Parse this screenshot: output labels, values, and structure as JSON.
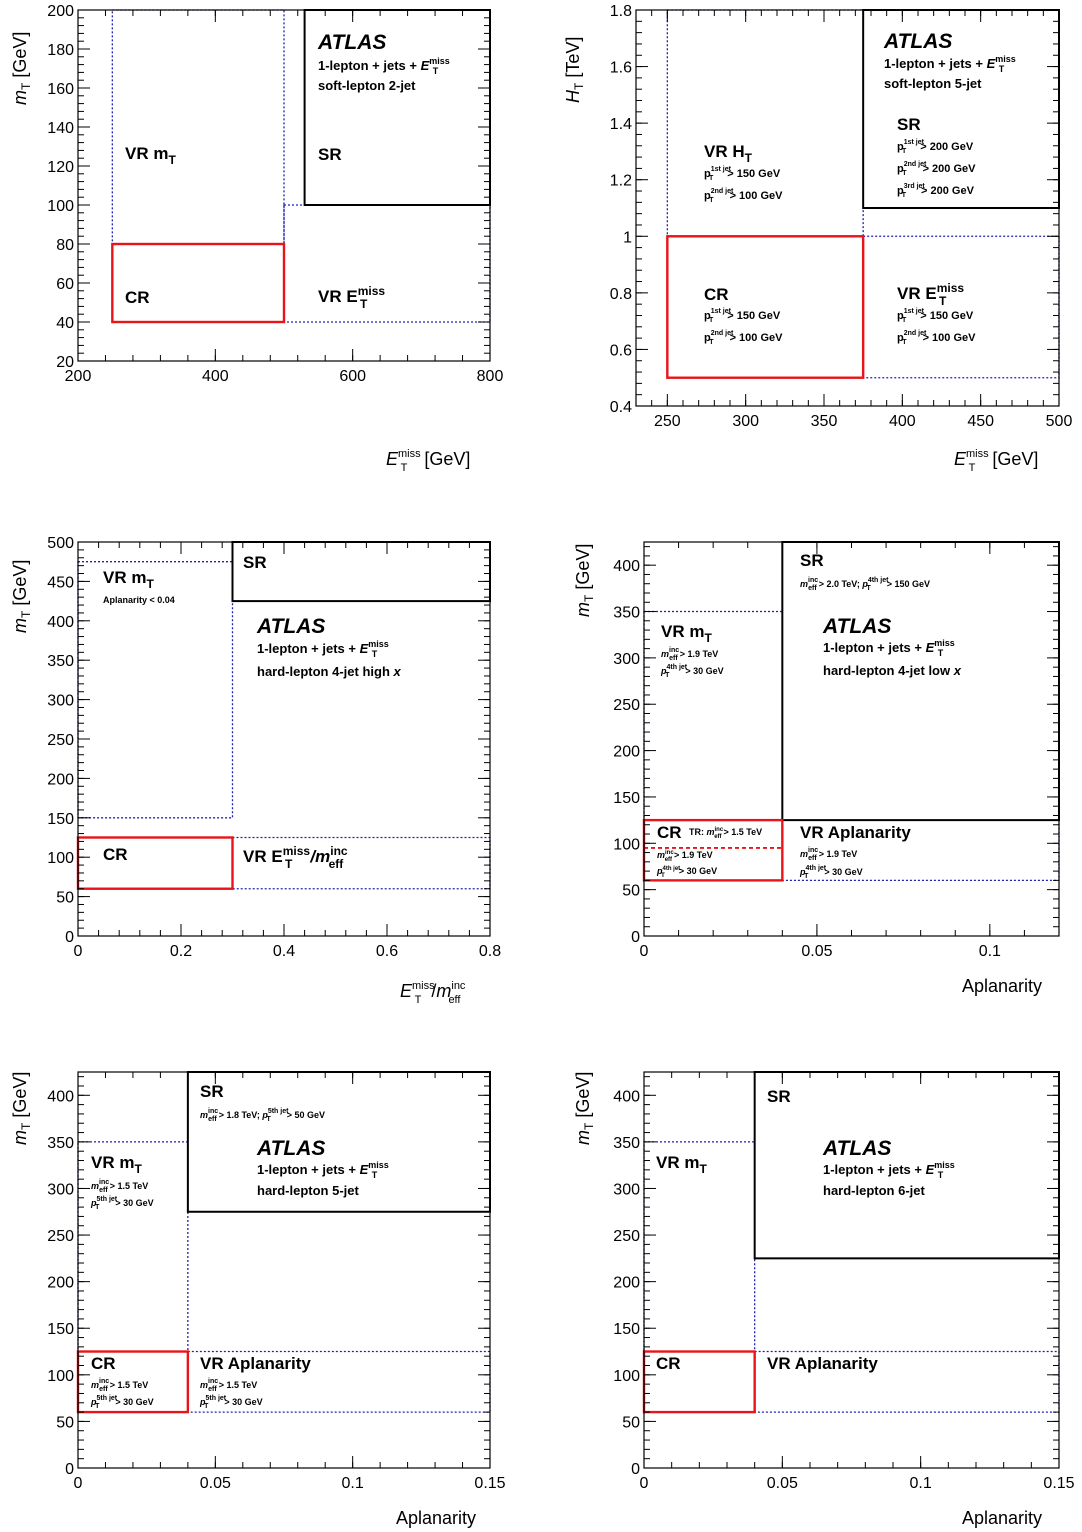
{
  "colors": {
    "cr": "#e8141a",
    "sr": "#000000",
    "vr": "#2020b0"
  },
  "chart_data": [
    {
      "type": "region-map",
      "id": "p1",
      "xlabel_main": "E",
      "xlabel_sup": "miss",
      "xlabel_sub": "T",
      "xlabel_unit": " [GeV]",
      "ylabel_main": "m",
      "ylabel_sub": "T",
      "ylabel_unit": " [GeV]",
      "xlim": [
        200,
        800
      ],
      "ylim": [
        20,
        200
      ],
      "xticks": [
        "200",
        "400",
        "600",
        "800"
      ],
      "yticks": [
        "20",
        "40",
        "60",
        "80",
        "100",
        "120",
        "140",
        "160",
        "180",
        "200"
      ],
      "atlas": "ATLAS",
      "analysis_line1": "1-lepton + jets + ",
      "analysis_met": "E",
      "analysis_met_sup": "miss",
      "analysis_met_sub": "T",
      "analysis_line2": "soft-lepton 2-jet",
      "regions": [
        {
          "kind": "vr",
          "x": [
            250,
            500
          ],
          "y": [
            80,
            200
          ]
        },
        {
          "kind": "vr",
          "x": [
            500,
            800
          ],
          "y": [
            40,
            100
          ]
        },
        {
          "kind": "sr",
          "x": [
            530,
            800
          ],
          "y": [
            100,
            200
          ]
        },
        {
          "kind": "cr",
          "x": [
            250,
            500
          ],
          "y": [
            40,
            80
          ]
        }
      ],
      "labels": {
        "vr_mt": "VR  m",
        "vr_mt_sub": "T",
        "sr": "SR",
        "cr": "CR",
        "vr_met": "VR  E",
        "vr_met_sup": "miss",
        "vr_met_sub": "T"
      }
    },
    {
      "type": "region-map",
      "id": "p2",
      "xlabel_main": "E",
      "xlabel_sup": "miss",
      "xlabel_sub": "T",
      "xlabel_unit": " [GeV]",
      "ylabel_main": "H",
      "ylabel_sub": "T",
      "ylabel_unit": " [TeV]",
      "xlim": [
        230,
        500
      ],
      "ylim": [
        0.4,
        1.8
      ],
      "xticks": [
        "250",
        "300",
        "350",
        "400",
        "450",
        "500"
      ],
      "yticks": [
        "0.4",
        "0.6",
        "0.8",
        "1",
        "1.2",
        "1.4",
        "1.6",
        "1.8"
      ],
      "atlas": "ATLAS",
      "analysis_line1": "1-lepton + jets + ",
      "analysis_met": "E",
      "analysis_met_sup": "miss",
      "analysis_met_sub": "T",
      "analysis_line2": "soft-lepton 5-jet",
      "regions": [
        {
          "kind": "vr",
          "x": [
            250,
            375
          ],
          "y": [
            1.0,
            1.8
          ]
        },
        {
          "kind": "vr",
          "x": [
            375,
            500
          ],
          "y": [
            0.5,
            1.0
          ]
        },
        {
          "kind": "sr",
          "x": [
            375,
            500
          ],
          "y": [
            1.1,
            1.8
          ]
        },
        {
          "kind": "cr",
          "x": [
            250,
            375
          ],
          "y": [
            0.5,
            1.0
          ]
        }
      ],
      "labels": {
        "vr_ht": "VR  H",
        "vr_ht_sub": "T",
        "vr_ht_l1": "> 150 GeV",
        "vr_ht_l2": "> 100 GeV",
        "sr": "SR",
        "sr_l1": "> 200 GeV",
        "sr_l2": "> 200 GeV",
        "sr_l3": "> 200 GeV",
        "cr": "CR",
        "cr_l1": "> 150 GeV",
        "cr_l2": "> 100 GeV",
        "vr_met": "VR  E",
        "vr_met_sup": "miss",
        "vr_met_sub": "T",
        "vr_met_l1": "> 150 GeV",
        "vr_met_l2": "> 100 GeV",
        "p": "p",
        "T": "T",
        "j1": "1st jet",
        "j2": "2nd jet",
        "j3": "3rd jet"
      }
    },
    {
      "type": "region-map",
      "id": "p3",
      "xlabel_main": "E",
      "xlabel_sup": "miss",
      "xlabel_sub": "T",
      "xlabel_slash": "/",
      "xlabel_m": "m",
      "xlabel_m_sup": "inc",
      "xlabel_m_sub": "eff",
      "ylabel_main": "m",
      "ylabel_sub": "T",
      "ylabel_unit": " [GeV]",
      "xlim": [
        0,
        0.8
      ],
      "ylim": [
        0,
        500
      ],
      "xticks": [
        "0",
        "0.2",
        "0.4",
        "0.6",
        "0.8"
      ],
      "yticks": [
        "0",
        "50",
        "100",
        "150",
        "200",
        "250",
        "300",
        "350",
        "400",
        "450",
        "500"
      ],
      "atlas": "ATLAS",
      "analysis_line1": "1-lepton + jets + ",
      "analysis_met": "E",
      "analysis_met_sup": "miss",
      "analysis_met_sub": "T",
      "analysis_line2": "hard-lepton 4-jet high ",
      "analysis_x": "x",
      "regions": [
        {
          "kind": "vr",
          "x": [
            0,
            0.3
          ],
          "y": [
            150,
            475
          ]
        },
        {
          "kind": "vr",
          "x": [
            0.3,
            0.8
          ],
          "y": [
            60,
            125
          ]
        },
        {
          "kind": "sr",
          "x": [
            0.3,
            0.8
          ],
          "y": [
            425,
            500
          ]
        },
        {
          "kind": "cr",
          "x": [
            0,
            0.3
          ],
          "y": [
            60,
            125
          ]
        }
      ],
      "labels": {
        "vr_mt": "VR  m",
        "vr_mt_sub": "T",
        "vr_mt_l1": "Aplanarity < 0.04",
        "sr": "SR",
        "cr": "CR",
        "vr_ratio": "VR  E",
        "vr_ratio_sup": "miss",
        "vr_ratio_sub": "T",
        "vr_ratio_slash": "/m",
        "vr_ratio_m_sup": "inc",
        "vr_ratio_m_sub": "eff"
      }
    },
    {
      "type": "region-map",
      "id": "p4",
      "xlabel": "Aplanarity",
      "ylabel_main": "m",
      "ylabel_sub": "T",
      "ylabel_unit": " [GeV]",
      "xlim": [
        0,
        0.12
      ],
      "ylim": [
        0,
        425
      ],
      "xticks": [
        "0",
        "0.05",
        "0.1"
      ],
      "yticks": [
        "0",
        "50",
        "100",
        "150",
        "200",
        "250",
        "300",
        "350",
        "400"
      ],
      "atlas": "ATLAS",
      "analysis_line1": "1-lepton + jets + ",
      "analysis_met": "E",
      "analysis_met_sup": "miss",
      "analysis_met_sub": "T",
      "analysis_line2": "hard-lepton 4-jet low ",
      "analysis_x": "x",
      "regions": [
        {
          "kind": "vr",
          "x": [
            0,
            0.04
          ],
          "y": [
            125,
            350
          ]
        },
        {
          "kind": "vr",
          "x": [
            0.04,
            0.12
          ],
          "y": [
            60,
            125
          ]
        },
        {
          "kind": "sr",
          "x": [
            0.04,
            0.12
          ],
          "y": [
            125,
            425
          ]
        },
        {
          "kind": "cr",
          "x": [
            0,
            0.04
          ],
          "y": [
            60,
            125
          ]
        },
        {
          "kind": "crsplit",
          "x": [
            0,
            0.04
          ],
          "y": [
            95,
            95
          ]
        }
      ],
      "labels": {
        "sr": "SR",
        "sr_l1": "> 2.0 TeV; ",
        "sr_l2": "> 150 GeV",
        "vr_mt": "VR  m",
        "vr_mt_sub": "T",
        "vr_mt_l1": "> 1.9 TeV",
        "vr_mt_l2": "> 30 GeV",
        "cr": "CR",
        "cr_tr": "TR: ",
        "cr_tr_l": "> 1.5 TeV",
        "cr_l1": "> 1.9 TeV",
        "cr_l2": "> 30 GeV",
        "vr_apl": "VR Aplanarity",
        "vr_apl_l1": "> 1.9 TeV",
        "vr_apl_l2": "> 30 GeV",
        "m": "m",
        "inc": "inc",
        "eff": "eff",
        "p": "p",
        "T": "T",
        "j4": "4th jet"
      }
    },
    {
      "type": "region-map",
      "id": "p5",
      "xlabel": "Aplanarity",
      "ylabel_main": "m",
      "ylabel_sub": "T",
      "ylabel_unit": " [GeV]",
      "xlim": [
        0,
        0.15
      ],
      "ylim": [
        0,
        425
      ],
      "xticks": [
        "0",
        "0.05",
        "0.1",
        "0.15"
      ],
      "yticks": [
        "0",
        "50",
        "100",
        "150",
        "200",
        "250",
        "300",
        "350",
        "400"
      ],
      "atlas": "ATLAS",
      "analysis_line1": "1-lepton + jets + ",
      "analysis_met": "E",
      "analysis_met_sup": "miss",
      "analysis_met_sub": "T",
      "analysis_line2": "hard-lepton 5-jet",
      "regions": [
        {
          "kind": "vr",
          "x": [
            0,
            0.04
          ],
          "y": [
            125,
            350
          ]
        },
        {
          "kind": "vr",
          "x": [
            0.04,
            0.15
          ],
          "y": [
            60,
            125
          ]
        },
        {
          "kind": "sr",
          "x": [
            0.04,
            0.15
          ],
          "y": [
            275,
            425
          ]
        },
        {
          "kind": "cr",
          "x": [
            0,
            0.04
          ],
          "y": [
            60,
            125
          ]
        }
      ],
      "labels": {
        "sr": "SR",
        "sr_l1": "> 1.8 TeV; ",
        "sr_l2": "> 50 GeV",
        "vr_mt": "VR  m",
        "vr_mt_sub": "T",
        "vr_mt_l1": "> 1.5 TeV",
        "vr_mt_l2": "> 30 GeV",
        "cr": "CR",
        "cr_l1": "> 1.5 TeV",
        "cr_l2": "> 30 GeV",
        "vr_apl": "VR Aplanarity",
        "vr_apl_l1": "> 1.5 TeV",
        "vr_apl_l2": "> 30 GeV",
        "m": "m",
        "inc": "inc",
        "eff": "eff",
        "p": "p",
        "T": "T",
        "j5": "5th jet"
      }
    },
    {
      "type": "region-map",
      "id": "p6",
      "xlabel": "Aplanarity",
      "ylabel_main": "m",
      "ylabel_sub": "T",
      "ylabel_unit": " [GeV]",
      "xlim": [
        0,
        0.15
      ],
      "ylim": [
        0,
        425
      ],
      "xticks": [
        "0",
        "0.05",
        "0.1",
        "0.15"
      ],
      "yticks": [
        "0",
        "50",
        "100",
        "150",
        "200",
        "250",
        "300",
        "350",
        "400"
      ],
      "atlas": "ATLAS",
      "analysis_line1": "1-lepton + jets + ",
      "analysis_met": "E",
      "analysis_met_sup": "miss",
      "analysis_met_sub": "T",
      "analysis_line2": "hard-lepton 6-jet",
      "regions": [
        {
          "kind": "vr",
          "x": [
            0,
            0.04
          ],
          "y": [
            125,
            350
          ]
        },
        {
          "kind": "vr",
          "x": [
            0.04,
            0.15
          ],
          "y": [
            60,
            125
          ]
        },
        {
          "kind": "sr",
          "x": [
            0.04,
            0.15
          ],
          "y": [
            225,
            425
          ]
        },
        {
          "kind": "cr",
          "x": [
            0,
            0.04
          ],
          "y": [
            60,
            125
          ]
        }
      ],
      "labels": {
        "sr": "SR",
        "vr_mt": "VR  m",
        "vr_mt_sub": "T",
        "cr": "CR",
        "vr_apl": "VR Aplanarity"
      }
    }
  ]
}
